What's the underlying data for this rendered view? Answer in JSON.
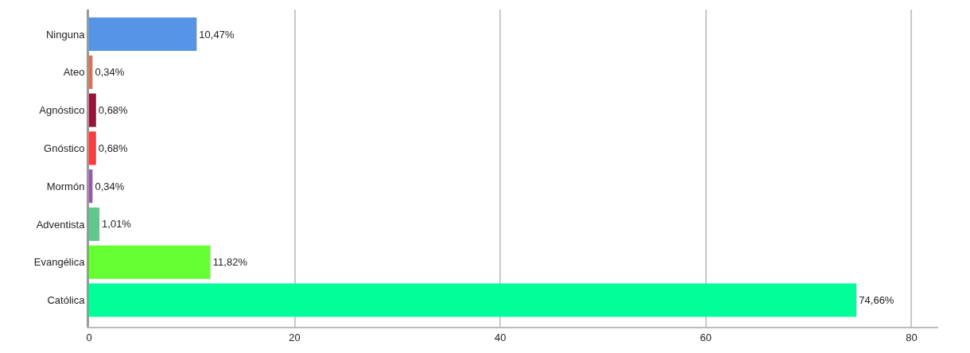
{
  "chart_data": {
    "type": "bar",
    "orientation": "horizontal",
    "categories": [
      "Ninguna",
      "Ateo",
      "Agnóstico",
      "Gnóstico",
      "Mormón",
      "Adventista",
      "Evangélica",
      "Católica"
    ],
    "values": [
      10.47,
      0.34,
      0.68,
      0.68,
      0.34,
      1.01,
      11.82,
      74.66
    ],
    "colors": [
      "#5594e6",
      "#e0704f",
      "#9b1238",
      "#ff3a3a",
      "#9a55b8",
      "#5ec98a",
      "#66ff33",
      "#00ff99"
    ],
    "value_labels": [
      "10,47%",
      "0,34%",
      "0,68%",
      "0,68%",
      "0,34%",
      "1,01%",
      "11,82%",
      "74,66%"
    ],
    "xlim": [
      0,
      82.6
    ],
    "xticks": [
      0,
      20,
      40,
      60,
      80
    ],
    "grid": "x",
    "legend": false
  }
}
